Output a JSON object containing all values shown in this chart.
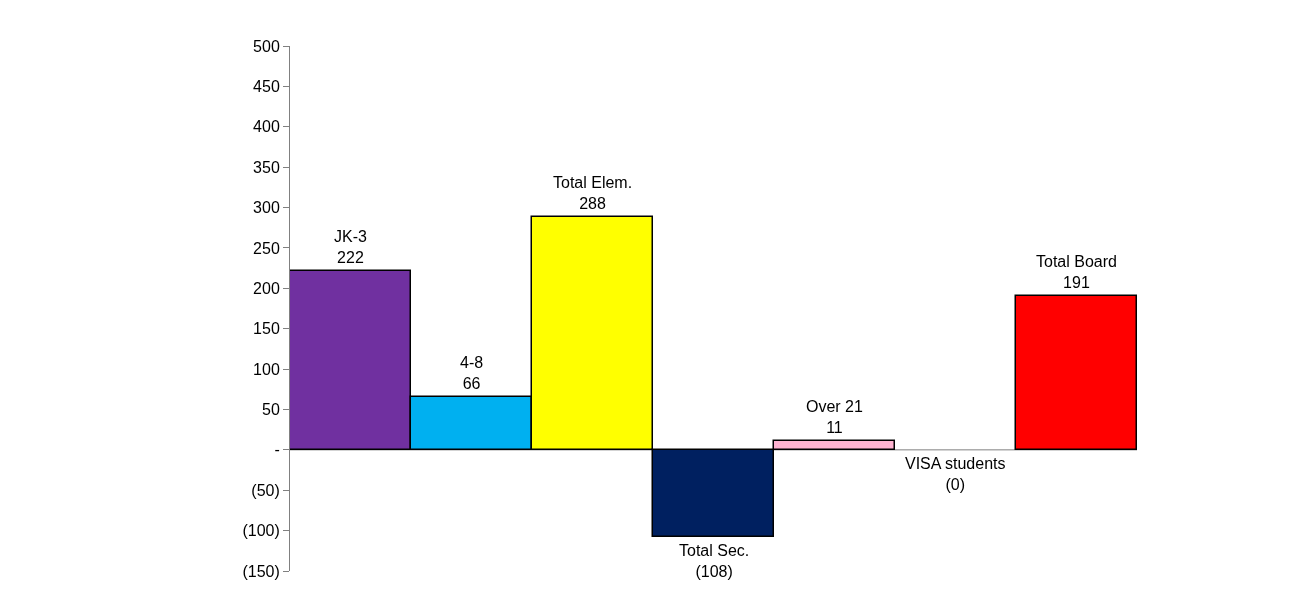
{
  "chart_data": {
    "type": "bar",
    "categories": [
      null,
      null,
      null,
      null,
      null,
      null,
      null
    ],
    "series": [
      {
        "name": "JK-3",
        "color": "#7030a0",
        "values": [
          222,
          null,
          null,
          null,
          null,
          null,
          null
        ],
        "value_labels": [
          "222",
          null,
          null,
          null,
          null,
          null,
          null
        ]
      },
      {
        "name": "4-8",
        "color": "#00b0f0",
        "values": [
          null,
          66,
          null,
          null,
          null,
          null,
          null
        ],
        "value_labels": [
          null,
          "66",
          null,
          null,
          null,
          null,
          null
        ]
      },
      {
        "name": "Total Elem.",
        "color": "#ffff00",
        "values": [
          null,
          null,
          288,
          null,
          null,
          null,
          null
        ],
        "value_labels": [
          null,
          null,
          "288",
          null,
          null,
          null,
          null
        ]
      },
      {
        "name": "Total Sec.",
        "color": "#002060",
        "values": [
          null,
          null,
          null,
          -108,
          null,
          null,
          null
        ],
        "value_labels": [
          null,
          null,
          null,
          "(108)",
          null,
          null,
          null
        ]
      },
      {
        "name": "Over 21",
        "color": "#ffb3d1",
        "values": [
          null,
          null,
          null,
          null,
          11,
          null,
          null
        ],
        "value_labels": [
          null,
          null,
          null,
          null,
          "11",
          null,
          null
        ]
      },
      {
        "name": "VISA students",
        "values": [
          null,
          null,
          null,
          null,
          null,
          0,
          null
        ],
        "value_labels": [
          null,
          null,
          null,
          null,
          null,
          "(0)",
          null
        ]
      },
      {
        "name": "Total Board",
        "color": "#ff0000",
        "values": [
          null,
          null,
          null,
          null,
          null,
          null,
          191
        ],
        "value_labels": [
          null,
          null,
          null,
          null,
          null,
          null,
          "191"
        ]
      }
    ],
    "ylim": [
      -150,
      500
    ],
    "yticks": [
      {
        "value": -150,
        "label": "(150)"
      },
      {
        "value": -100,
        "label": "(100)"
      },
      {
        "value": -50,
        "label": "(50)"
      },
      {
        "value": 0,
        "label": "-"
      },
      50,
      100,
      150,
      200,
      250,
      300,
      350,
      400,
      450,
      500
    ],
    "tick_labels": "y",
    "grid": false,
    "ref_lines": [
      {
        "axis": "y",
        "value": 0,
        "color": "#808080"
      }
    ],
    "legend": false
  }
}
